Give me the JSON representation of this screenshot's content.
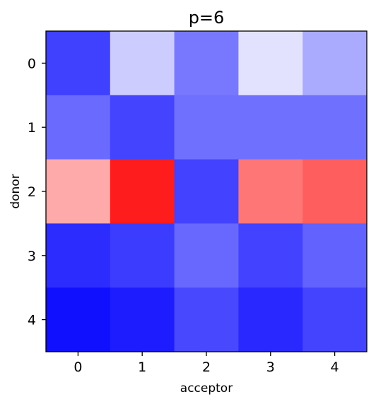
{
  "chart_data": {
    "type": "heatmap",
    "title": "p=6",
    "xlabel": "acceptor",
    "ylabel": "donor",
    "x_ticks": [
      "0",
      "1",
      "2",
      "3",
      "4"
    ],
    "y_ticks": [
      "0",
      "1",
      "2",
      "3",
      "4"
    ],
    "colormap": "bwr",
    "cell_colors": [
      [
        "#4040ff",
        "#ccccff",
        "#7878ff",
        "#e2e2ff",
        "#aaaaff"
      ],
      [
        "#6a6aff",
        "#4444ff",
        "#7070ff",
        "#7070ff",
        "#7070ff"
      ],
      [
        "#ffaaaa",
        "#ff1c1c",
        "#4242ff",
        "#ff7676",
        "#ff5e5e"
      ],
      [
        "#2c2cff",
        "#3c3cff",
        "#6868ff",
        "#4242ff",
        "#6262ff"
      ],
      [
        "#1010ff",
        "#1c1cff",
        "#4848ff",
        "#2828ff",
        "#4444ff"
      ]
    ],
    "grid": false,
    "legend": "none"
  }
}
